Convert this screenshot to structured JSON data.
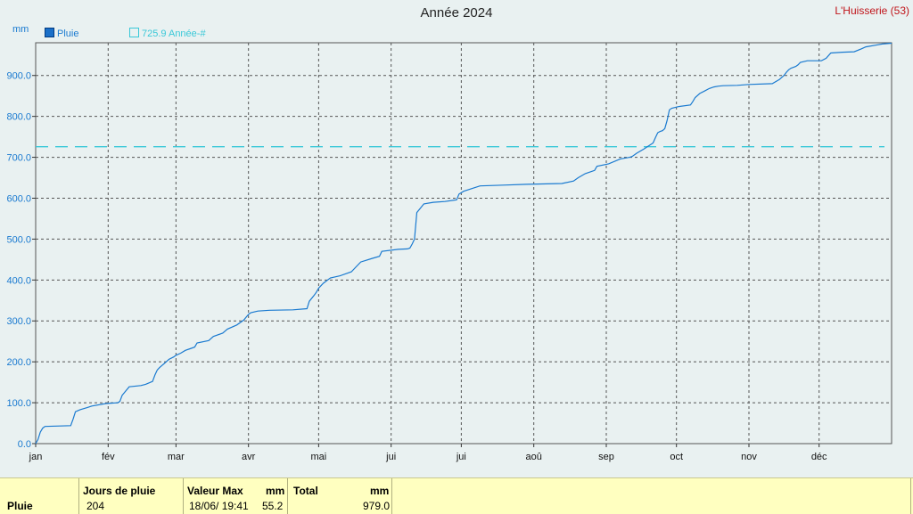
{
  "header": {
    "title": "Année 2024",
    "station": "L'Huisserie (53)",
    "unit": "mm"
  },
  "legend": {
    "pluie": "Pluie",
    "annee": "725.9 Année-#"
  },
  "colors": {
    "series": "#1a7ad0",
    "reference": "#3ac8d8",
    "station": "#c0141a",
    "table_bg": "#ffffc0"
  },
  "chart_data": {
    "type": "line",
    "ylim": [
      0,
      980
    ],
    "yticks": [
      "0.0",
      "100.0",
      "200.0",
      "300.0",
      "400.0",
      "500.0",
      "600.0",
      "700.0",
      "800.0",
      "900.0"
    ],
    "yticks_values": [
      0,
      100,
      200,
      300,
      400,
      500,
      600,
      700,
      800,
      900
    ],
    "xlim": [
      0,
      366
    ],
    "months": [
      "jan",
      "fév",
      "mar",
      "avr",
      "mai",
      "jui",
      "jui",
      "aoû",
      "sep",
      "oct",
      "nov",
      "déc"
    ],
    "month_start_days": [
      0,
      31,
      60,
      91,
      121,
      152,
      182,
      213,
      244,
      274,
      305,
      335
    ],
    "grid": true,
    "reference_line": {
      "value": 725.9,
      "name": "Année-#"
    },
    "series": [
      {
        "name": "Pluie",
        "x": [
          0,
          1,
          2,
          3,
          4,
          15,
          16,
          17,
          19,
          22,
          24,
          30,
          35,
          36,
          37,
          40,
          45,
          47,
          50,
          51,
          52,
          53,
          54,
          55,
          56,
          57,
          59,
          60,
          62,
          64,
          66,
          68,
          69,
          74,
          76,
          80,
          82,
          86,
          89,
          91,
          92,
          95,
          100,
          110,
          116,
          117,
          119,
          120,
          121,
          123,
          126,
          130,
          135,
          137,
          139,
          144,
          147,
          148,
          155,
          159,
          160,
          161,
          162,
          163,
          166,
          170,
          175,
          180,
          181,
          183,
          190,
          200,
          210,
          225,
          230,
          232,
          235,
          239,
          240,
          245,
          250,
          254,
          255,
          257,
          260,
          264,
          265,
          266,
          267,
          268,
          269,
          270,
          271,
          272,
          275,
          280,
          281,
          282,
          284,
          286,
          288,
          290,
          292,
          294,
          300,
          305,
          315,
          318,
          320,
          321,
          322,
          323,
          325,
          326,
          327,
          330,
          336,
          338,
          340,
          345,
          350,
          353,
          355,
          360,
          362,
          366
        ],
        "y": [
          0,
          10,
          28,
          38,
          42,
          44,
          60,
          78,
          83,
          88,
          92,
          98,
          100,
          103,
          118,
          139,
          142,
          145,
          152,
          168,
          180,
          186,
          191,
          196,
          201,
          206,
          212,
          216,
          221,
          228,
          232,
          236,
          246,
          252,
          262,
          270,
          280,
          290,
          302,
          316,
          320,
          324,
          326,
          327,
          330,
          348,
          362,
          370,
          380,
          392,
          405,
          410,
          420,
          432,
          444,
          453,
          458,
          470,
          475,
          476,
          478,
          488,
          500,
          565,
          586,
          590,
          592,
          596,
          610,
          617,
          630,
          632,
          634,
          636,
          642,
          650,
          660,
          668,
          678,
          684,
          696,
          700,
          702,
          710,
          720,
          735,
          748,
          760,
          763,
          765,
          770,
          790,
          816,
          820,
          824,
          828,
          836,
          846,
          856,
          862,
          868,
          872,
          874,
          875,
          876,
          878,
          880,
          890,
          900,
          908,
          914,
          918,
          922,
          926,
          932,
          936,
          936,
          942,
          955,
          957,
          958,
          965,
          970,
          975,
          977,
          979
        ]
      }
    ]
  },
  "table": {
    "row_label": "Pluie",
    "jours_header": "Jours de pluie",
    "jours_value": "204",
    "valmax_header": "Valeur Max",
    "valmax_unit": "mm",
    "valmax_date": "18/06/  19:41",
    "valmax_value": "55.2",
    "total_header": "Total",
    "total_unit": "mm",
    "total_value": "979.0"
  }
}
